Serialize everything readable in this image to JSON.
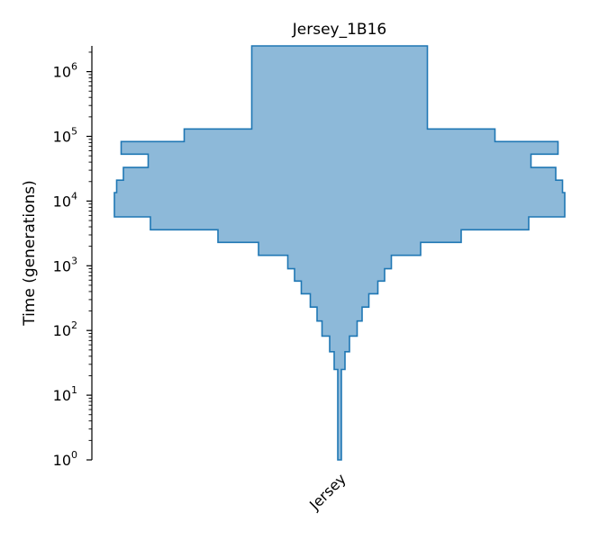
{
  "chart_data": {
    "type": "area",
    "title": "Jersey_1B16",
    "ylabel": "Time (generations)",
    "xlabel": "",
    "categories": [
      "Jersey"
    ],
    "yscale": "log",
    "ylim": [
      1,
      2500000
    ],
    "y_ticks": [
      {
        "value": 1,
        "base": "10",
        "exp": "0"
      },
      {
        "value": 10,
        "base": "10",
        "exp": "1"
      },
      {
        "value": 100,
        "base": "10",
        "exp": "2"
      },
      {
        "value": 1000,
        "base": "10",
        "exp": "3"
      },
      {
        "value": 10000,
        "base": "10",
        "exp": "4"
      },
      {
        "value": 100000,
        "base": "10",
        "exp": "5"
      },
      {
        "value": 1000000,
        "base": "10",
        "exp": "6"
      }
    ],
    "colors": {
      "fill": "#8db9d9",
      "edge": "#1f77b4"
    },
    "series": [
      {
        "category": "Jersey",
        "steps": [
          {
            "time_start": 1,
            "time_end": 25,
            "width": 0.008
          },
          {
            "time_start": 25,
            "time_end": 47,
            "width": 0.024
          },
          {
            "time_start": 47,
            "time_end": 82,
            "width": 0.044
          },
          {
            "time_start": 82,
            "time_end": 140,
            "width": 0.078
          },
          {
            "time_start": 140,
            "time_end": 230,
            "width": 0.1
          },
          {
            "time_start": 230,
            "time_end": 370,
            "width": 0.13
          },
          {
            "time_start": 370,
            "time_end": 580,
            "width": 0.17
          },
          {
            "time_start": 580,
            "time_end": 900,
            "width": 0.2
          },
          {
            "time_start": 900,
            "time_end": 1450,
            "width": 0.23
          },
          {
            "time_start": 1450,
            "time_end": 2300,
            "width": 0.36
          },
          {
            "time_start": 2300,
            "time_end": 3600,
            "width": 0.54
          },
          {
            "time_start": 3600,
            "time_end": 5700,
            "width": 0.84
          },
          {
            "time_start": 5700,
            "time_end": 9000,
            "width": 1.0
          },
          {
            "time_start": 9000,
            "time_end": 13500,
            "width": 1.0
          },
          {
            "time_start": 13500,
            "time_end": 21000,
            "width": 0.99
          },
          {
            "time_start": 21000,
            "time_end": 33000,
            "width": 0.96
          },
          {
            "time_start": 33000,
            "time_end": 53000,
            "width": 0.85
          },
          {
            "time_start": 53000,
            "time_end": 83000,
            "width": 0.97
          },
          {
            "time_start": 83000,
            "time_end": 130000,
            "width": 0.69
          },
          {
            "time_start": 130000,
            "time_end": 2500000,
            "width": 0.39
          }
        ]
      }
    ]
  }
}
